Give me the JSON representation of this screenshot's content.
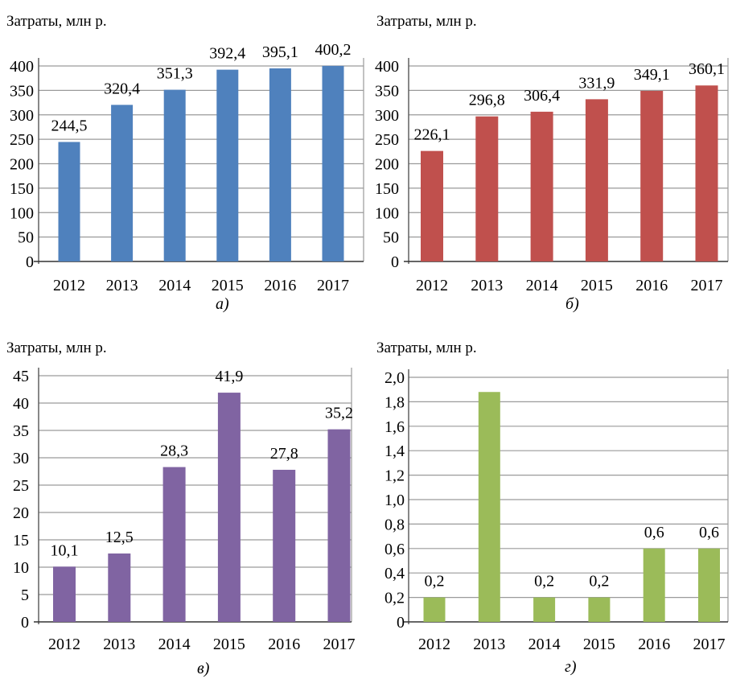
{
  "chart_data": [
    {
      "type": "bar",
      "panel_label": "а",
      "ylabel": "Затраты, млн р.",
      "categories": [
        "2012",
        "2013",
        "2014",
        "2015",
        "2016",
        "2017"
      ],
      "values": [
        244.5,
        320.4,
        351.3,
        392.4,
        395.1,
        400.2
      ],
      "value_labels": [
        "244,5",
        "320,4",
        "351,3",
        "392,4",
        "395,1",
        "400,2"
      ],
      "ylim": [
        0,
        400
      ],
      "yticks": [
        0,
        50,
        100,
        150,
        200,
        250,
        300,
        350,
        400
      ],
      "ytick_labels": [
        "0",
        "50",
        "100",
        "150",
        "200",
        "250",
        "300",
        "350",
        "400"
      ],
      "color": "#4f81bd",
      "grid": true
    },
    {
      "type": "bar",
      "panel_label": "б",
      "ylabel": "Затраты, млн р.",
      "categories": [
        "2012",
        "2013",
        "2014",
        "2015",
        "2016",
        "2017"
      ],
      "values": [
        226.1,
        296.8,
        306.4,
        331.9,
        349.1,
        360.1
      ],
      "value_labels": [
        "226,1",
        "296,8",
        "306,4",
        "331,9",
        "349,1",
        "360,1"
      ],
      "ylim": [
        0,
        400
      ],
      "yticks": [
        0,
        50,
        100,
        150,
        200,
        250,
        300,
        350,
        400
      ],
      "ytick_labels": [
        "0",
        "50",
        "100",
        "150",
        "200",
        "250",
        "300",
        "350",
        "400"
      ],
      "color": "#c0504d",
      "grid": true
    },
    {
      "type": "bar",
      "panel_label": "в",
      "ylabel": "Затраты, млн р.",
      "categories": [
        "2012",
        "2013",
        "2014",
        "2015",
        "2016",
        "2017"
      ],
      "values": [
        10.1,
        12.5,
        28.3,
        41.9,
        27.8,
        35.2
      ],
      "value_labels": [
        "10,1",
        "12,5",
        "28,3",
        "41,9",
        "27,8",
        "35,2"
      ],
      "ylim": [
        0,
        45
      ],
      "yticks": [
        0,
        5,
        10,
        15,
        20,
        25,
        30,
        35,
        40,
        45
      ],
      "ytick_labels": [
        "0",
        "5",
        "10",
        "15",
        "20",
        "25",
        "30",
        "35",
        "40",
        "45"
      ],
      "color": "#8064a2",
      "grid": true
    },
    {
      "type": "bar",
      "panel_label": "г",
      "ylabel": "Затраты, млн р.",
      "categories": [
        "2012",
        "2013",
        "2014",
        "2015",
        "2016",
        "2017"
      ],
      "values": [
        0.2,
        1.88,
        0.2,
        0.2,
        0.6,
        0.6
      ],
      "value_labels": [
        "0,2",
        "",
        "0,2",
        "0,2",
        "0,6",
        "0,6"
      ],
      "ylim": [
        0,
        2.0
      ],
      "yticks": [
        0,
        0.2,
        0.4,
        0.6,
        0.8,
        1.0,
        1.2,
        1.4,
        1.6,
        1.8,
        2.0
      ],
      "ytick_labels": [
        "0",
        "0,2",
        "0,4",
        "0,6",
        "0,8",
        "1,0",
        "1,2",
        "1,4",
        "1,6",
        "1,8",
        "2,0"
      ],
      "color": "#9bbb59",
      "grid": true
    }
  ]
}
